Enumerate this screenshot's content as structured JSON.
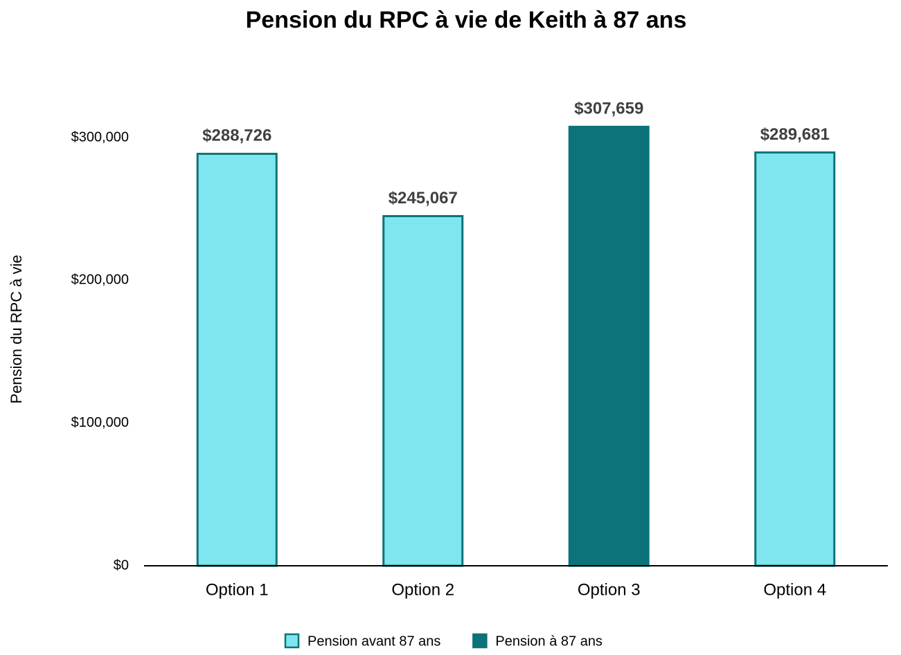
{
  "chart_data": {
    "type": "bar",
    "title": "Pension du RPC à vie de Keith à 87 ans",
    "y_label": "Pension du RPC à vie",
    "categories": [
      "Option 1",
      "Option 2",
      "Option 3",
      "Option 4"
    ],
    "series": [
      {
        "name": "Pension avant 87 ans",
        "color": "#7fe6ef",
        "values": [
          288726,
          245067,
          null,
          289681
        ],
        "value_labels": [
          "$288,726",
          "$245,067",
          null,
          "$289,681"
        ]
      },
      {
        "name": "Pension à 87 ans",
        "color": "#0b7379",
        "values": [
          null,
          null,
          307659,
          null
        ],
        "value_labels": [
          null,
          null,
          "$307,659",
          null
        ]
      }
    ],
    "edgecolor": "#0b7379",
    "ylim": [
      0,
      350000
    ],
    "yticks": [
      {
        "value": 0,
        "label": "$0"
      },
      {
        "value": 100000,
        "label": "$100,000"
      },
      {
        "value": 200000,
        "label": "$200,000"
      },
      {
        "value": 300000,
        "label": "$300,000"
      }
    ],
    "grid": false,
    "legend": "bottom"
  }
}
